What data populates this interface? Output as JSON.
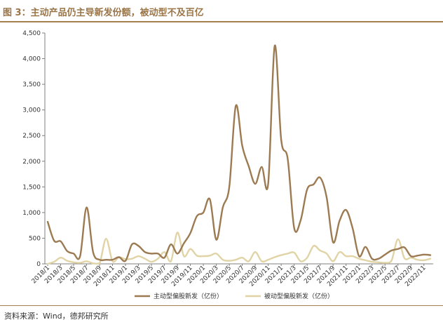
{
  "title": "图 3：主动产品仍主导新发份额，被动型不及百亿",
  "source": "资料来源：Wind，德邦研究所",
  "chart_data": {
    "type": "line",
    "title": "图 3：主动产品仍主导新发份额，被动型不及百亿",
    "ylim": [
      0,
      4500
    ],
    "yticks": [
      0,
      500,
      1000,
      1500,
      2000,
      2500,
      3000,
      3500,
      4000,
      4500
    ],
    "ytick_labels": [
      "0",
      "500",
      "1,000",
      "1,500",
      "2,000",
      "2,500",
      "3,000",
      "3,500",
      "4,000",
      "4,500"
    ],
    "xtick_labels": [
      "2018/1",
      "2018/3",
      "2018/5",
      "2018/7",
      "2018/9",
      "2018/11",
      "2019/1",
      "2019/3",
      "2019/5",
      "2019/7",
      "2019/9",
      "2019/11",
      "2020/1",
      "2020/3",
      "2020/5",
      "2020/7",
      "2020/9",
      "2020/11",
      "2021/1",
      "2021/3",
      "2021/5",
      "2021/7",
      "2021/9",
      "2021/11",
      "2022/1",
      "2022/3",
      "2022/5",
      "2022/7",
      "2022/9",
      "2022/11"
    ],
    "x": [
      "2018/1",
      "2018/2",
      "2018/3",
      "2018/4",
      "2018/5",
      "2018/6",
      "2018/7",
      "2018/8",
      "2018/9",
      "2018/10",
      "2018/11",
      "2018/12",
      "2019/1",
      "2019/2",
      "2019/3",
      "2019/4",
      "2019/5",
      "2019/6",
      "2019/7",
      "2019/8",
      "2019/9",
      "2019/10",
      "2019/11",
      "2019/12",
      "2020/1",
      "2020/2",
      "2020/3",
      "2020/4",
      "2020/5",
      "2020/6",
      "2020/7",
      "2020/8",
      "2020/9",
      "2020/10",
      "2020/11",
      "2020/12",
      "2021/1",
      "2021/2",
      "2021/3",
      "2021/4",
      "2021/5",
      "2021/6",
      "2021/7",
      "2021/8",
      "2021/9",
      "2021/10",
      "2021/11",
      "2021/12",
      "2022/1",
      "2022/2",
      "2022/3",
      "2022/4",
      "2022/5",
      "2022/6",
      "2022/7",
      "2022/8",
      "2022/9",
      "2022/10",
      "2022/11",
      "2022/12"
    ],
    "grid": false,
    "legend_position": "bottom",
    "series": [
      {
        "name": "主动型偏股新发（亿份）",
        "color": "#9c7a52",
        "values": [
          820,
          450,
          440,
          250,
          200,
          150,
          1100,
          230,
          80,
          80,
          80,
          130,
          60,
          380,
          350,
          230,
          200,
          200,
          120,
          380,
          200,
          400,
          600,
          930,
          1000,
          1260,
          470,
          1100,
          1500,
          3080,
          2300,
          1900,
          1560,
          1890,
          1570,
          4250,
          2420,
          2050,
          700,
          850,
          1450,
          1550,
          1680,
          1300,
          420,
          840,
          1050,
          700,
          150,
          330,
          100,
          100,
          180,
          260,
          290,
          320,
          150,
          160,
          180,
          170
        ]
      },
      {
        "name": "被动型偏股新发（亿份）",
        "color": "#e0d4a6",
        "values": [
          0,
          40,
          120,
          60,
          30,
          20,
          50,
          10,
          10,
          490,
          50,
          130,
          90,
          100,
          150,
          100,
          40,
          100,
          230,
          50,
          610,
          150,
          290,
          160,
          150,
          160,
          200,
          80,
          60,
          80,
          120,
          50,
          230,
          50,
          80,
          130,
          170,
          200,
          220,
          50,
          120,
          350,
          260,
          200,
          50,
          230,
          150,
          150,
          100,
          70,
          40,
          30,
          20,
          60,
          480,
          110,
          120,
          80,
          70,
          100
        ]
      }
    ]
  }
}
